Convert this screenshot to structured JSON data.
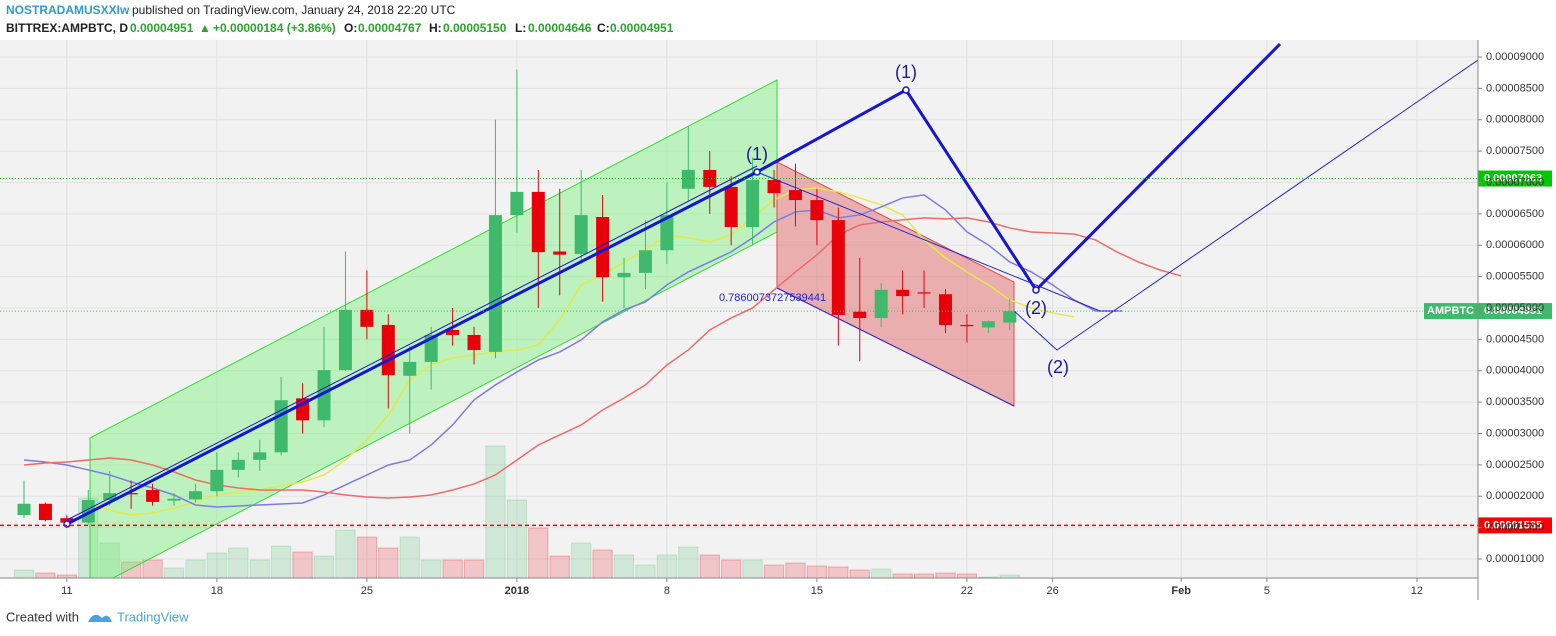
{
  "header": {
    "author": "NOSTRADAMUSXXIw",
    "published": "published on TradingView.com, January 24, 2018 22:20 UTC",
    "symbol": "BITTREX:AMPBTC, D",
    "last": "0.00004951",
    "arrow": "▲",
    "change": "+0.00000184 (+3.86%)",
    "o_label": "O:",
    "o": "0.00004767",
    "h_label": "H:",
    "h": "0.00005150",
    "l_label": "L:",
    "l": "0.00004646",
    "c_label": "C:",
    "c": "0.00004951"
  },
  "footer": {
    "created": "Created with",
    "brand": "TradingView"
  },
  "annotations": {
    "wave1a": "(1)",
    "wave1b": "(1)",
    "wave2a": "(2)",
    "wave2b": "(2)",
    "fib": "0.7860073727539441"
  },
  "chart_data": {
    "type": "candlestick",
    "up_color": "#3fba6c",
    "down_color": "#e8000b",
    "xlim": [
      -1.12,
      67.85
    ],
    "xticks": [
      {
        "value": 2,
        "label": "11"
      },
      {
        "value": 9,
        "label": "18"
      },
      {
        "value": 16,
        "label": "25"
      },
      {
        "value": 23,
        "label": "2018"
      },
      {
        "value": 30,
        "label": "8"
      },
      {
        "value": 37,
        "label": "15"
      },
      {
        "value": 44,
        "label": "22"
      },
      {
        "value": 48,
        "label": "26"
      },
      {
        "value": 54,
        "label": "Feb"
      },
      {
        "value": 58,
        "label": "5"
      },
      {
        "value": 65,
        "label": "12"
      }
    ],
    "ylim": [
      6.97e-06,
      9.271e-05
    ],
    "yticks": [
      {
        "value": 1e-05,
        "label": "0.00001000"
      },
      {
        "value": 1.5e-05,
        "label": "0.00001500"
      },
      {
        "value": 2e-05,
        "label": "0.00002000"
      },
      {
        "value": 2.5e-05,
        "label": "0.00002500"
      },
      {
        "value": 3e-05,
        "label": "0.00003000"
      },
      {
        "value": 3.5e-05,
        "label": "0.00003500"
      },
      {
        "value": 4e-05,
        "label": "0.00004000"
      },
      {
        "value": 4.5e-05,
        "label": "0.00004500"
      },
      {
        "value": 5e-05,
        "label": "0.00005000"
      },
      {
        "value": 5.5e-05,
        "label": "0.00005500"
      },
      {
        "value": 6e-05,
        "label": "0.00006000"
      },
      {
        "value": 6.5e-05,
        "label": "0.00006500"
      },
      {
        "value": 7e-05,
        "label": "0.00007000"
      },
      {
        "value": 7.5e-05,
        "label": "0.00007500"
      },
      {
        "value": 8e-05,
        "label": "0.00008000"
      },
      {
        "value": 8.5e-05,
        "label": "0.00008500"
      },
      {
        "value": 9e-05,
        "label": "0.00009000"
      }
    ],
    "grid": true,
    "open": [
      1.7e-05,
      1.88e-05,
      1.65e-05,
      1.58e-05,
      1.94e-05,
      2.05e-05,
      2.1e-05,
      1.93e-05,
      1.95e-05,
      2.08e-05,
      2.42e-05,
      2.58e-05,
      2.7e-05,
      3.56e-05,
      3.21e-05,
      4.01e-05,
      4.97e-05,
      4.73e-05,
      3.92e-05,
      4.14e-05,
      4.65e-05,
      4.57e-05,
      4.3e-05,
      6.48e-05,
      6.85e-05,
      5.9e-05,
      5.86e-05,
      6.45e-05,
      5.49e-05,
      5.56e-05,
      5.92e-05,
      6.9e-05,
      7.2e-05,
      6.93e-05,
      6.29e-05,
      7.04e-05,
      6.88e-05,
      6.72e-05,
      6.4e-05,
      4.94e-05,
      4.84e-05,
      5.29e-05,
      5.25e-05,
      5.22e-05,
      4.73e-05,
      4.69e-05,
      4.767e-05
    ],
    "high": [
      2.25e-05,
      1.9e-05,
      1.7e-05,
      2.1e-05,
      2.4e-05,
      2.25e-05,
      2.2e-05,
      2.05e-05,
      2.2e-05,
      2.7e-05,
      2.7e-05,
      2.9e-05,
      3.9e-05,
      3.8e-05,
      4.7e-05,
      5.9e-05,
      5.6e-05,
      4.9e-05,
      4.4e-05,
      4.7e-05,
      5e-05,
      4.7e-05,
      8e-05,
      8.8e-05,
      7.2e-05,
      6.9e-05,
      7.2e-05,
      6.8e-05,
      5.8e-05,
      6.4e-05,
      7e-05,
      7.9e-05,
      7.5e-05,
      7.1e-05,
      7.4e-05,
      7.2e-05,
      7.3e-05,
      6.9e-05,
      6.6e-05,
      5.8e-05,
      5.4e-05,
      5.6e-05,
      5.6e-05,
      5.3e-05,
      4.9e-05,
      4.8e-05,
      5.15e-05
    ],
    "low": [
      1.65e-05,
      1.6e-05,
      1.5e-05,
      1.55e-05,
      1.85e-05,
      1.8e-05,
      1.85e-05,
      1.85e-05,
      1.9e-05,
      2e-05,
      2.3e-05,
      2.4e-05,
      2.65e-05,
      3e-05,
      3.1e-05,
      4e-05,
      4.5e-05,
      3.4e-05,
      3e-05,
      3.7e-05,
      4.4e-05,
      4.1e-05,
      4.2e-05,
      6.2e-05,
      5e-05,
      5.2e-05,
      5.7e-05,
      5.1e-05,
      5e-05,
      5.3e-05,
      5.7e-05,
      6.7e-05,
      6.5e-05,
      6e-05,
      6e-05,
      6.6e-05,
      6.3e-05,
      6e-05,
      4.4e-05,
      4.15e-05,
      4.7e-05,
      4.9e-05,
      5e-05,
      4.6e-05,
      4.45e-05,
      4.6e-05,
      4.646e-05
    ],
    "close": [
      1.88e-05,
      1.62e-05,
      1.58e-05,
      1.94e-05,
      2.05e-05,
      2.03e-05,
      1.91e-05,
      1.96e-05,
      2.08e-05,
      2.42e-05,
      2.58e-05,
      2.7e-05,
      3.53e-05,
      3.21e-05,
      4.01e-05,
      4.97e-05,
      4.7e-05,
      3.93e-05,
      4.14e-05,
      4.57e-05,
      4.57e-05,
      4.33e-05,
      6.48e-05,
      6.85e-05,
      5.89e-05,
      5.85e-05,
      6.48e-05,
      5.49e-05,
      5.56e-05,
      5.92e-05,
      6.48e-05,
      7.2e-05,
      6.93e-05,
      6.29e-05,
      7.04e-05,
      6.83e-05,
      6.72e-05,
      6.4e-05,
      4.89e-05,
      4.84e-05,
      5.29e-05,
      5.19e-05,
      5.23e-05,
      4.73e-05,
      4.71e-05,
      4.79e-05,
      4.951e-05
    ],
    "volume": [
      8,
      5,
      3,
      80,
      35,
      16,
      18,
      10,
      18,
      25,
      30,
      18,
      32,
      26,
      22,
      48,
      41,
      30,
      41,
      18,
      18,
      18,
      132,
      78,
      50,
      22,
      35,
      28,
      23,
      13,
      23,
      31,
      23,
      18,
      18,
      13,
      15,
      12,
      11,
      8,
      9,
      4,
      4,
      5,
      4,
      1,
      3
    ],
    "series": [
      {
        "color": "#e6e84a",
        "values": [
          null,
          null,
          null,
          1.861e-05,
          1.781e-05,
          1.701e-05,
          1.733e-05,
          1.813e-05,
          1.909e-05,
          2.02e-05,
          2.068e-05,
          2.1e-05,
          2.164e-05,
          2.227e-05,
          2.339e-05,
          2.578e-05,
          2.897e-05,
          3.295e-05,
          3.853e-05,
          4.092e-05,
          4.204e-05,
          4.252e-05,
          4.3e-05,
          4.331e-05,
          4.411e-05,
          4.81e-05,
          5.368e-05,
          5.527e-05,
          5.734e-05,
          5.925e-05,
          6.165e-05,
          6.117e-05,
          6.053e-05,
          6.165e-05,
          6.436e-05,
          6.723e-05,
          6.882e-05,
          6.914e-05,
          6.85e-05,
          6.754e-05,
          6.643e-05,
          6.483e-05,
          6.085e-05,
          5.798e-05,
          5.575e-05,
          5.368e-05,
          5.128e-05,
          5.001e-05,
          4.921e-05,
          4.857e-05,
          null,
          null,
          null,
          null,
          null
        ]
      },
      {
        "color": "#7b7be8",
        "values": [
          2.578e-05,
          2.546e-05,
          2.498e-05,
          2.419e-05,
          2.339e-05,
          2.227e-05,
          2.132e-05,
          2.02e-05,
          1.861e-05,
          1.829e-05,
          1.845e-05,
          1.861e-05,
          1.877e-05,
          1.893e-05,
          2.02e-05,
          2.18e-05,
          2.339e-05,
          2.498e-05,
          2.578e-05,
          2.817e-05,
          3.136e-05,
          3.535e-05,
          3.774e-05,
          3.981e-05,
          4.172e-05,
          4.3e-05,
          4.491e-05,
          4.778e-05,
          4.969e-05,
          5.097e-05,
          5.368e-05,
          5.575e-05,
          5.734e-05,
          5.894e-05,
          6.117e-05,
          6.372e-05,
          6.531e-05,
          6.563e-05,
          6.436e-05,
          6.483e-05,
          6.611e-05,
          6.754e-05,
          6.802e-05,
          6.563e-05,
          6.212e-05,
          6.005e-05,
          5.734e-05,
          5.575e-05,
          5.368e-05,
          5.128e-05,
          4.953e-05,
          4.953e-05,
          null,
          null,
          null
        ]
      },
      {
        "color": "#ef6a6a",
        "values": [
          2.498e-05,
          2.53e-05,
          2.546e-05,
          2.578e-05,
          2.609e-05,
          2.578e-05,
          2.498e-05,
          2.387e-05,
          2.259e-05,
          2.18e-05,
          2.132e-05,
          2.1e-05,
          2.1e-05,
          2.1e-05,
          2.068e-05,
          2.02e-05,
          1.988e-05,
          1.972e-05,
          1.988e-05,
          2.02e-05,
          2.1e-05,
          2.196e-05,
          2.339e-05,
          2.578e-05,
          2.817e-05,
          2.977e-05,
          3.136e-05,
          3.375e-05,
          3.566e-05,
          3.774e-05,
          4.092e-05,
          4.331e-05,
          4.65e-05,
          4.842e-05,
          5.001e-05,
          5.288e-05,
          5.575e-05,
          5.846e-05,
          6.165e-05,
          6.324e-05,
          6.372e-05,
          6.404e-05,
          6.436e-05,
          6.42e-05,
          6.436e-05,
          6.372e-05,
          6.276e-05,
          6.212e-05,
          6.196e-05,
          6.18e-05,
          6.085e-05,
          5.894e-05,
          5.734e-05,
          5.607e-05,
          5.511e-05
        ]
      }
    ],
    "levels": [
      {
        "value": 7.063e-05,
        "label": "0.00007063",
        "color": "#00c800"
      },
      {
        "value": 4.951e-05,
        "label": "0.00004951",
        "name": "AMPBTC",
        "color": "#3fba6c"
      },
      {
        "value": 1.535e-05,
        "label": "0.00001535",
        "color": "#ff0000"
      }
    ]
  }
}
